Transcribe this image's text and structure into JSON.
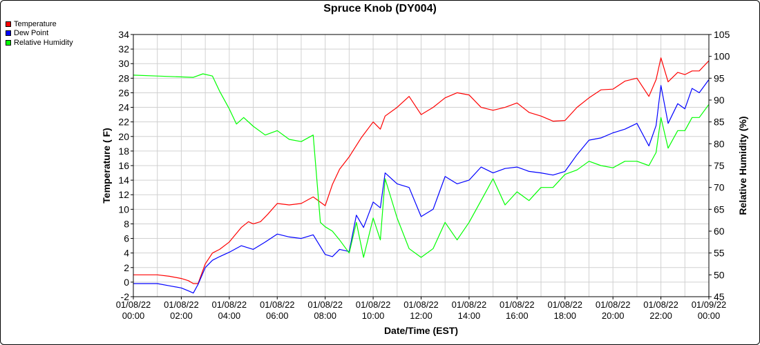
{
  "chart_data": {
    "type": "line",
    "title": "Spruce Knob (DY004)",
    "xlabel": "Date/Time (EST)",
    "ylabel": "Temperature ( F)",
    "y2label": "Relative Humidity (%)",
    "ylim": [
      -2,
      34
    ],
    "y2lim": [
      45,
      105
    ],
    "yticks": [
      -2,
      0,
      2,
      4,
      6,
      8,
      10,
      12,
      14,
      16,
      18,
      20,
      22,
      24,
      26,
      28,
      30,
      32,
      34
    ],
    "y2ticks": [
      45,
      50,
      55,
      60,
      65,
      70,
      75,
      80,
      85,
      90,
      95,
      100,
      105
    ],
    "xlim": [
      0,
      24
    ],
    "xticks": [
      {
        "x": 0,
        "date": "01/08/22",
        "time": "00:00"
      },
      {
        "x": 2,
        "date": "01/08/22",
        "time": "02:00"
      },
      {
        "x": 4,
        "date": "01/08/22",
        "time": "04:00"
      },
      {
        "x": 6,
        "date": "01/08/22",
        "time": "06:00"
      },
      {
        "x": 8,
        "date": "01/08/22",
        "time": "08:00"
      },
      {
        "x": 10,
        "date": "01/08/22",
        "time": "10:00"
      },
      {
        "x": 12,
        "date": "01/08/22",
        "time": "12:00"
      },
      {
        "x": 14,
        "date": "01/08/22",
        "time": "14:00"
      },
      {
        "x": 16,
        "date": "01/08/22",
        "time": "16:00"
      },
      {
        "x": 18,
        "date": "01/08/22",
        "time": "18:00"
      },
      {
        "x": 20,
        "date": "01/08/22",
        "time": "20:00"
      },
      {
        "x": 22,
        "date": "01/08/22",
        "time": "22:00"
      },
      {
        "x": 24,
        "date": "01/09/22",
        "time": "00:00"
      }
    ],
    "legend_position": "top-left",
    "grid": true,
    "series": [
      {
        "name": "Temperature",
        "color": "#ff0000",
        "axis": "left",
        "points": [
          [
            0,
            1
          ],
          [
            1,
            1
          ],
          [
            1.5,
            0.8
          ],
          [
            2,
            0.5
          ],
          [
            2.3,
            0.2
          ],
          [
            2.5,
            -0.2
          ],
          [
            2.7,
            -0.2
          ],
          [
            3,
            2.5
          ],
          [
            3.3,
            4
          ],
          [
            3.6,
            4.5
          ],
          [
            4,
            5.5
          ],
          [
            4.5,
            7.5
          ],
          [
            4.8,
            8.3
          ],
          [
            5,
            8
          ],
          [
            5.3,
            8.3
          ],
          [
            5.6,
            9.3
          ],
          [
            6,
            10.8
          ],
          [
            6.5,
            10.6
          ],
          [
            7,
            10.8
          ],
          [
            7.5,
            11.7
          ],
          [
            8,
            10.5
          ],
          [
            8.3,
            13.4
          ],
          [
            8.6,
            15.5
          ],
          [
            9,
            17.2
          ],
          [
            9.5,
            19.8
          ],
          [
            10,
            22
          ],
          [
            10.3,
            21
          ],
          [
            10.5,
            22.8
          ],
          [
            11,
            24
          ],
          [
            11.5,
            25.5
          ],
          [
            12,
            23
          ],
          [
            12.5,
            24
          ],
          [
            13,
            25.3
          ],
          [
            13.5,
            26
          ],
          [
            14,
            25.7
          ],
          [
            14.5,
            24
          ],
          [
            15,
            23.6
          ],
          [
            15.5,
            24
          ],
          [
            16,
            24.6
          ],
          [
            16.5,
            23.3
          ],
          [
            17,
            22.8
          ],
          [
            17.5,
            22.1
          ],
          [
            18,
            22.2
          ],
          [
            18.5,
            24
          ],
          [
            19,
            25.3
          ],
          [
            19.5,
            26.4
          ],
          [
            20,
            26.5
          ],
          [
            20.5,
            27.6
          ],
          [
            21,
            28
          ],
          [
            21.5,
            25.5
          ],
          [
            21.8,
            27.8
          ],
          [
            22,
            30.8
          ],
          [
            22.3,
            27.5
          ],
          [
            22.7,
            28.8
          ],
          [
            23,
            28.5
          ],
          [
            23.3,
            29
          ],
          [
            23.6,
            29
          ],
          [
            24,
            30.4
          ]
        ]
      },
      {
        "name": "Dew Point",
        "color": "#0000ff",
        "axis": "left",
        "points": [
          [
            0,
            -0.2
          ],
          [
            1,
            -0.2
          ],
          [
            1.5,
            -0.5
          ],
          [
            2,
            -0.8
          ],
          [
            2.3,
            -1.2
          ],
          [
            2.5,
            -1.5
          ],
          [
            2.7,
            -0.3
          ],
          [
            3,
            2
          ],
          [
            3.3,
            3
          ],
          [
            3.6,
            3.5
          ],
          [
            4,
            4.1
          ],
          [
            4.5,
            5
          ],
          [
            5,
            4.5
          ],
          [
            5.5,
            5.5
          ],
          [
            6,
            6.6
          ],
          [
            6.5,
            6.2
          ],
          [
            7,
            6
          ],
          [
            7.5,
            6.5
          ],
          [
            8,
            3.8
          ],
          [
            8.3,
            3.5
          ],
          [
            8.6,
            4.5
          ],
          [
            9,
            4.2
          ],
          [
            9.3,
            9.2
          ],
          [
            9.6,
            7.5
          ],
          [
            10,
            11
          ],
          [
            10.3,
            10.2
          ],
          [
            10.5,
            15
          ],
          [
            11,
            13.5
          ],
          [
            11.5,
            13
          ],
          [
            12,
            9
          ],
          [
            12.5,
            10
          ],
          [
            13,
            14.5
          ],
          [
            13.5,
            13.5
          ],
          [
            14,
            14
          ],
          [
            14.5,
            15.8
          ],
          [
            15,
            15
          ],
          [
            15.5,
            15.6
          ],
          [
            16,
            15.8
          ],
          [
            16.5,
            15.2
          ],
          [
            17,
            15
          ],
          [
            17.5,
            14.7
          ],
          [
            18,
            15.2
          ],
          [
            18.5,
            17.5
          ],
          [
            19,
            19.5
          ],
          [
            19.5,
            19.8
          ],
          [
            20,
            20.5
          ],
          [
            20.5,
            21
          ],
          [
            21,
            21.8
          ],
          [
            21.5,
            18.7
          ],
          [
            21.8,
            21.5
          ],
          [
            22,
            27
          ],
          [
            22.3,
            21.8
          ],
          [
            22.7,
            24.5
          ],
          [
            23,
            23.8
          ],
          [
            23.3,
            26.6
          ],
          [
            23.6,
            26
          ],
          [
            24,
            27.8
          ]
        ]
      },
      {
        "name": "Relative Humidity",
        "color": "#00ff00",
        "axis": "right",
        "points": [
          [
            0,
            95.7
          ],
          [
            1,
            95.5
          ],
          [
            2.5,
            95.2
          ],
          [
            2.9,
            96
          ],
          [
            3.3,
            95.5
          ],
          [
            3.6,
            92
          ],
          [
            4,
            88
          ],
          [
            4.3,
            84.5
          ],
          [
            4.6,
            86
          ],
          [
            5,
            84
          ],
          [
            5.5,
            82
          ],
          [
            6,
            83
          ],
          [
            6.5,
            81
          ],
          [
            7,
            80.5
          ],
          [
            7.5,
            82
          ],
          [
            7.8,
            62
          ],
          [
            8,
            61
          ],
          [
            8.3,
            60
          ],
          [
            8.6,
            58
          ],
          [
            9,
            55
          ],
          [
            9.3,
            62
          ],
          [
            9.6,
            54
          ],
          [
            10,
            63
          ],
          [
            10.3,
            58
          ],
          [
            10.5,
            72
          ],
          [
            11,
            63
          ],
          [
            11.5,
            56
          ],
          [
            12,
            54
          ],
          [
            12.5,
            56
          ],
          [
            13,
            62
          ],
          [
            13.5,
            58
          ],
          [
            14,
            62
          ],
          [
            14.5,
            67
          ],
          [
            15,
            72
          ],
          [
            15.5,
            66
          ],
          [
            16,
            69
          ],
          [
            16.5,
            67
          ],
          [
            17,
            70
          ],
          [
            17.5,
            70
          ],
          [
            18,
            73
          ],
          [
            18.5,
            74
          ],
          [
            19,
            76
          ],
          [
            19.5,
            75
          ],
          [
            20,
            74.5
          ],
          [
            20.5,
            76
          ],
          [
            21,
            76
          ],
          [
            21.5,
            75
          ],
          [
            21.8,
            78
          ],
          [
            22,
            86
          ],
          [
            22.3,
            79
          ],
          [
            22.7,
            83
          ],
          [
            23,
            83
          ],
          [
            23.3,
            86
          ],
          [
            23.6,
            86
          ],
          [
            24,
            89
          ]
        ]
      }
    ]
  }
}
